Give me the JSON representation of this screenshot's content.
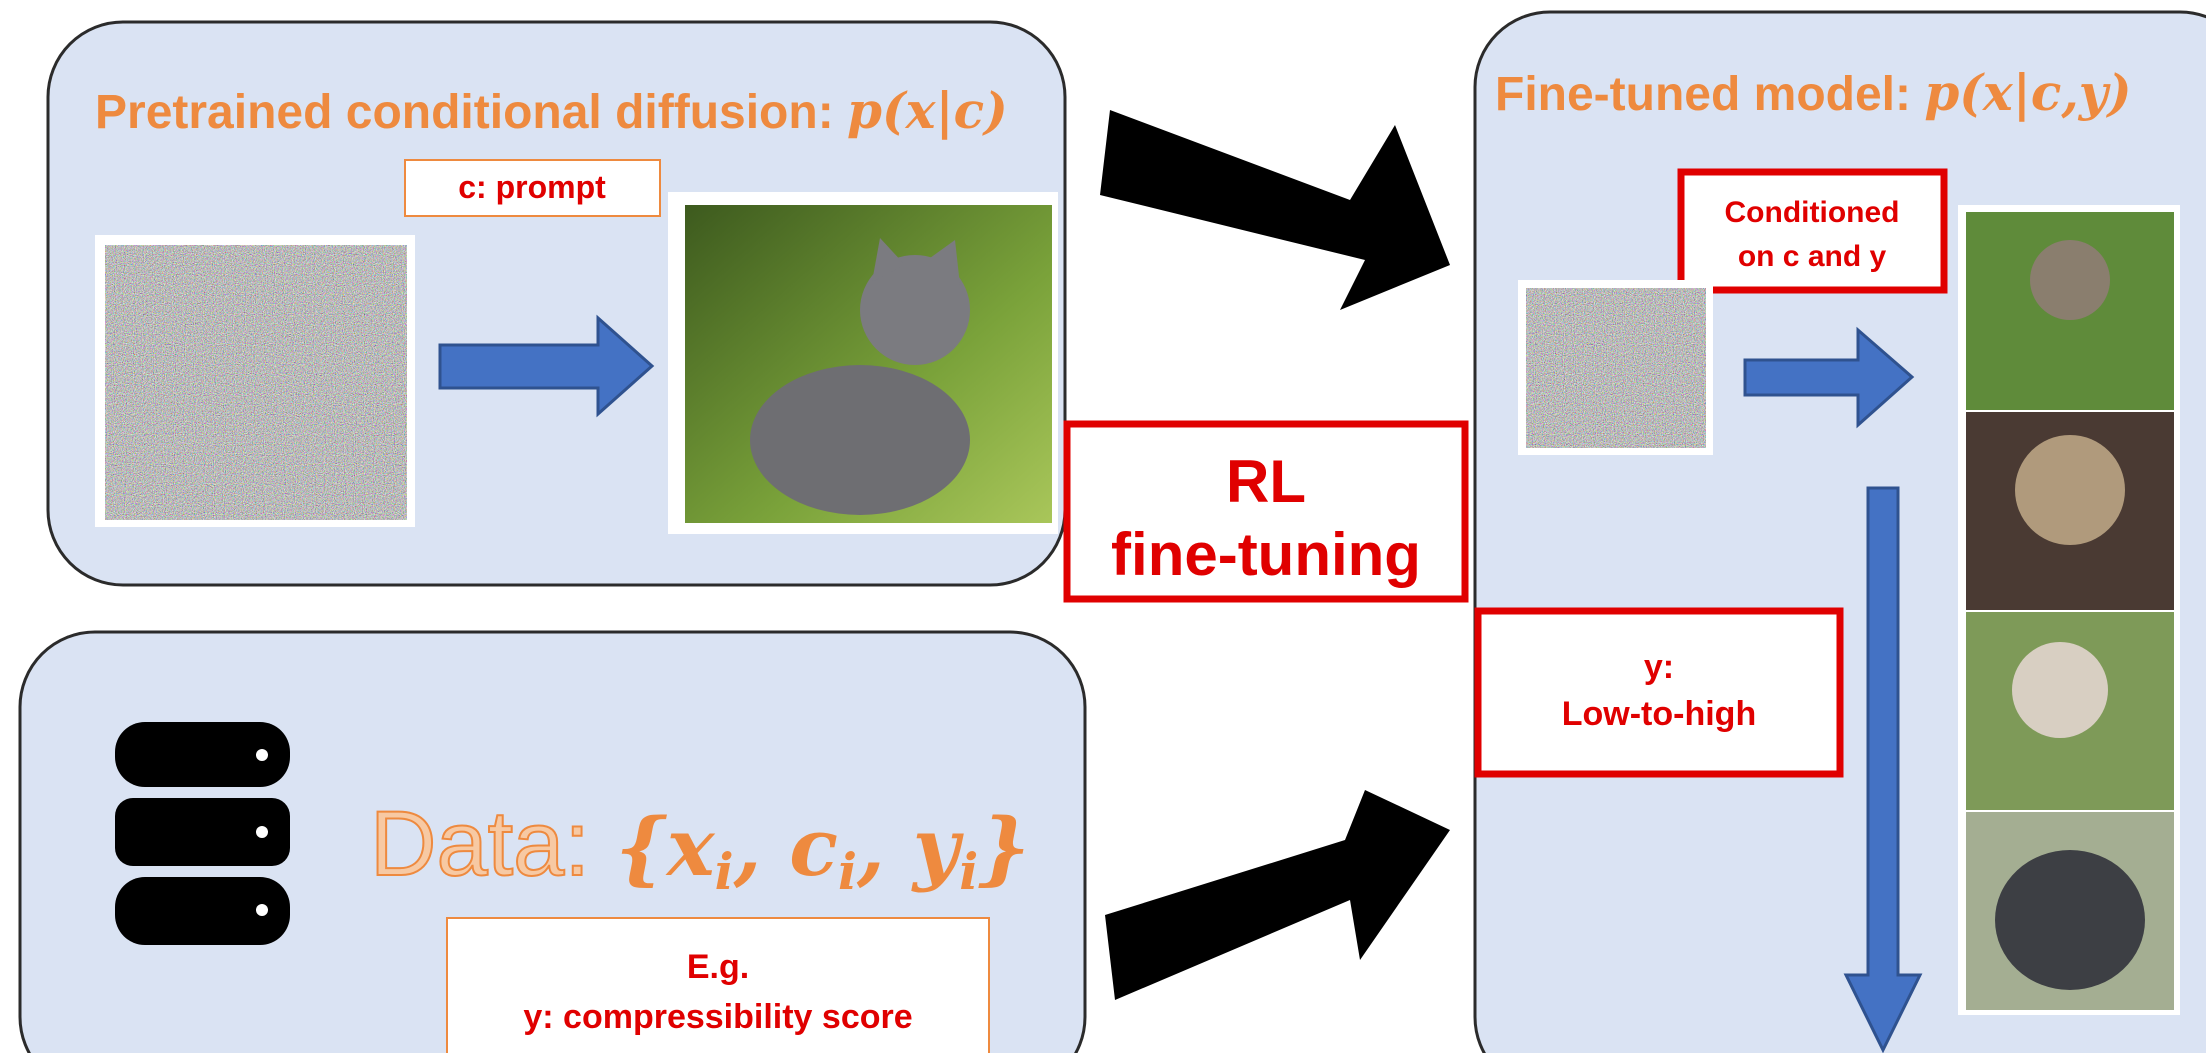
{
  "top_left": {
    "title": "Pretrained conditional diffusion: ",
    "title_math": "p(x|c)",
    "prompt_label": "c: prompt"
  },
  "center": {
    "line1": "RL",
    "line2": "fine-tuning"
  },
  "right": {
    "title": "Fine-tuned model: ",
    "title_math": "p(x|c,y)",
    "condition_line1": "Conditioned",
    "condition_line2": "on c and y",
    "y_line1": "y:",
    "y_line2": "Low-to-high"
  },
  "bottom_left": {
    "title": "Data: ",
    "title_math": "{x",
    "sub": "i",
    "comma": ", c",
    "comma2": ", y",
    "close": "}",
    "example_line1": "E.g.",
    "example_line2": "y: compressibility score"
  }
}
